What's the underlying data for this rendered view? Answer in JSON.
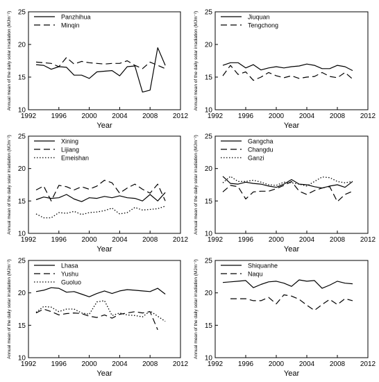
{
  "chart_data": [
    {
      "type": "line",
      "xlabel": "Year",
      "ylabel": "Annual mean of the daily solar irradiation (MJm⁻²)",
      "xlim": [
        1992,
        2012
      ],
      "ylim": [
        10,
        25
      ],
      "xticks": [
        "1992",
        "1996",
        "2000",
        "2004",
        "2008",
        "2012"
      ],
      "yticks": [
        "10",
        "15",
        "20",
        "25"
      ],
      "legend_position": "top-left",
      "series": [
        {
          "name": "Panzhihua",
          "style": "solid",
          "x": [
            1993,
            1994,
            1995,
            1996,
            1997,
            1998,
            1999,
            2000,
            2001,
            2002,
            2003,
            2004,
            2005,
            2006,
            2007,
            2008,
            2009,
            2010
          ],
          "y": [
            16.9,
            16.8,
            16.2,
            16.6,
            16.5,
            15.3,
            15.3,
            14.8,
            15.8,
            15.9,
            16.0,
            15.2,
            16.6,
            16.7,
            12.7,
            13.0,
            19.5,
            16.8
          ]
        },
        {
          "name": "Minqin",
          "style": "dash",
          "x": [
            1993,
            1994,
            1995,
            1996,
            1997,
            1998,
            1999,
            2000,
            2001,
            2002,
            2003,
            2004,
            2005,
            2006,
            2007,
            2008,
            2009,
            2010
          ],
          "y": [
            17.3,
            17.2,
            17.1,
            16.6,
            18.0,
            17.0,
            17.4,
            17.2,
            17.1,
            17.0,
            17.1,
            17.1,
            17.5,
            16.8,
            16.3,
            17.3,
            16.8,
            16.3
          ]
        }
      ]
    },
    {
      "type": "line",
      "xlabel": "Year",
      "ylabel": "Annual mean of the daily solar irradiation (MJm⁻²)",
      "xlim": [
        1992,
        2012
      ],
      "ylim": [
        10,
        25
      ],
      "xticks": [
        "1992",
        "1996",
        "2000",
        "2004",
        "2008",
        "2012"
      ],
      "yticks": [
        "10",
        "15",
        "20",
        "25"
      ],
      "legend_position": "top-left",
      "series": [
        {
          "name": "Jiuquan",
          "style": "solid",
          "x": [
            1993,
            1994,
            1995,
            1996,
            1997,
            1998,
            1999,
            2000,
            2001,
            2002,
            2003,
            2004,
            2005,
            2006,
            2007,
            2008,
            2009,
            2010
          ],
          "y": [
            16.8,
            17.2,
            17.2,
            16.4,
            16.9,
            16.1,
            16.4,
            16.6,
            16.4,
            16.6,
            16.7,
            17.0,
            16.8,
            16.3,
            16.3,
            16.8,
            16.6,
            16.0
          ]
        },
        {
          "name": "Tengchong",
          "style": "dash",
          "x": [
            1993,
            1994,
            1995,
            1996,
            1997,
            1998,
            1999,
            2000,
            2001,
            2002,
            2003,
            2004,
            2005,
            2006,
            2007,
            2008,
            2009,
            2010
          ],
          "y": [
            15.2,
            16.8,
            15.4,
            15.8,
            14.5,
            15.0,
            15.7,
            15.2,
            14.9,
            15.2,
            14.8,
            15.0,
            15.1,
            15.7,
            15.1,
            14.9,
            15.7,
            14.7
          ]
        }
      ]
    },
    {
      "type": "line",
      "xlabel": "Year",
      "ylabel": "Annual mean of the daily solar irradiation (MJm⁻²)",
      "xlim": [
        1992,
        2012
      ],
      "ylim": [
        10,
        25
      ],
      "xticks": [
        "1992",
        "1996",
        "2000",
        "2004",
        "2008",
        "2012"
      ],
      "yticks": [
        "10",
        "15",
        "20",
        "25"
      ],
      "legend_position": "top-left",
      "series": [
        {
          "name": "Xining",
          "style": "solid",
          "x": [
            1993,
            1994,
            1995,
            1996,
            1997,
            1998,
            1999,
            2000,
            2001,
            2002,
            2003,
            2004,
            2005,
            2006,
            2007,
            2008,
            2009,
            2010
          ],
          "y": [
            15.2,
            15.6,
            15.4,
            15.5,
            16.0,
            15.3,
            14.9,
            15.5,
            15.4,
            15.7,
            15.5,
            15.8,
            15.5,
            15.4,
            15.0,
            16.0,
            15.0,
            16.3
          ]
        },
        {
          "name": "Lijiang",
          "style": "dash",
          "x": [
            1993,
            1994,
            1995,
            1996,
            1997,
            1998,
            1999,
            2000,
            2001,
            2002,
            2003,
            2004,
            2005,
            2006,
            2007,
            2008,
            2009,
            2010
          ],
          "y": [
            16.7,
            17.3,
            15.0,
            17.4,
            17.2,
            16.7,
            17.2,
            16.8,
            17.3,
            18.2,
            17.8,
            16.2,
            17.0,
            17.6,
            16.8,
            16.2,
            17.6,
            15.0
          ]
        },
        {
          "name": "Emeishan",
          "style": "dot",
          "x": [
            1993,
            1994,
            1995,
            1996,
            1997,
            1998,
            1999,
            2000,
            2001,
            2002,
            2003,
            2004,
            2005,
            2006,
            2007,
            2008,
            2009,
            2010
          ],
          "y": [
            13.0,
            12.4,
            12.4,
            13.2,
            13.1,
            13.4,
            12.9,
            13.2,
            13.3,
            13.5,
            13.9,
            13.0,
            13.2,
            14.0,
            13.6,
            13.7,
            13.8,
            14.2
          ]
        }
      ]
    },
    {
      "type": "line",
      "xlabel": "Year",
      "ylabel": "Annual mean of the daily solar irradiation (MJm⁻²)",
      "xlim": [
        1992,
        2012
      ],
      "ylim": [
        10,
        25
      ],
      "xticks": [
        "1992",
        "1996",
        "2000",
        "2004",
        "2008",
        "2012"
      ],
      "yticks": [
        "10",
        "15",
        "20",
        "25"
      ],
      "legend_position": "top-left",
      "series": [
        {
          "name": "Gangcha",
          "style": "solid",
          "x": [
            1993,
            1994,
            1995,
            1996,
            1997,
            1998,
            1999,
            2000,
            2001,
            2002,
            2003,
            2004,
            2005,
            2006,
            2007,
            2008,
            2009,
            2010
          ],
          "y": [
            18.8,
            17.7,
            17.6,
            17.9,
            17.7,
            17.6,
            17.3,
            17.1,
            17.6,
            18.3,
            17.6,
            17.5,
            17.2,
            17.0,
            17.3,
            17.5,
            17.1,
            18.0
          ]
        },
        {
          "name": "Changdu",
          "style": "dash",
          "x": [
            1993,
            1994,
            1995,
            1996,
            1997,
            1998,
            1999,
            2000,
            2001,
            2002,
            2003,
            2004,
            2005,
            2006,
            2007,
            2008,
            2009,
            2010
          ],
          "y": [
            16.4,
            17.4,
            17.2,
            15.3,
            16.4,
            16.5,
            16.5,
            16.9,
            17.4,
            18.0,
            16.5,
            16.0,
            16.6,
            17.0,
            17.2,
            14.9,
            16.0,
            16.5
          ]
        },
        {
          "name": "Ganzi",
          "style": "dot",
          "x": [
            1993,
            1994,
            1995,
            1996,
            1997,
            1998,
            1999,
            2000,
            2001,
            2002,
            2003,
            2004,
            2005,
            2006,
            2007,
            2008,
            2009,
            2010
          ],
          "y": [
            17.8,
            18.8,
            18.0,
            18.0,
            18.2,
            17.9,
            17.5,
            17.4,
            17.9,
            17.8,
            17.6,
            17.3,
            18.0,
            18.7,
            18.6,
            18.0,
            17.8,
            18.0
          ]
        }
      ]
    },
    {
      "type": "line",
      "xlabel": "Year",
      "ylabel": "Annual mean of the daily solar irradiation (MJm⁻²)",
      "xlim": [
        1992,
        2012
      ],
      "ylim": [
        10,
        25
      ],
      "xticks": [
        "1992",
        "1996",
        "2000",
        "2004",
        "2008",
        "2012"
      ],
      "yticks": [
        "10",
        "15",
        "20",
        "25"
      ],
      "legend_position": "top-left",
      "series": [
        {
          "name": "Lhasa",
          "style": "solid",
          "x": [
            1993,
            1994,
            1995,
            1996,
            1997,
            1998,
            1999,
            2000,
            2001,
            2002,
            2003,
            2004,
            2005,
            2006,
            2007,
            2008,
            2009,
            2010
          ],
          "y": [
            20.2,
            20.4,
            20.8,
            20.7,
            20.1,
            20.2,
            19.8,
            19.4,
            19.9,
            20.3,
            19.9,
            20.3,
            20.5,
            20.4,
            20.3,
            20.2,
            20.7,
            19.8
          ]
        },
        {
          "name": "Yushu",
          "style": "dash",
          "x": [
            1993,
            1994,
            1995,
            1996,
            1997,
            1998,
            1999,
            2000,
            2001,
            2002,
            2003,
            2004,
            2005,
            2006,
            2007,
            2008,
            2009
          ],
          "y": [
            16.9,
            17.5,
            17.1,
            16.6,
            16.8,
            16.9,
            16.8,
            16.4,
            16.2,
            16.6,
            16.1,
            16.7,
            16.9,
            17.1,
            16.9,
            17.1,
            14.3
          ]
        },
        {
          "name": "Guoluo",
          "style": "dot",
          "x": [
            1993,
            1994,
            1995,
            1996,
            1997,
            1998,
            1999,
            2000,
            2001,
            2002,
            2003,
            2004,
            2005,
            2006,
            2007,
            2008,
            2009,
            2010
          ],
          "y": [
            17.0,
            17.9,
            17.8,
            17.1,
            17.5,
            17.5,
            16.9,
            16.7,
            18.6,
            18.8,
            16.5,
            16.9,
            16.6,
            16.5,
            16.3,
            17.2,
            16.4,
            15.6
          ]
        }
      ]
    },
    {
      "type": "line",
      "xlabel": "Year",
      "ylabel": "Annual mean of the daily solar irradiation (MJm⁻²)",
      "xlim": [
        1992,
        2012
      ],
      "ylim": [
        10,
        25
      ],
      "xticks": [
        "1992",
        "1996",
        "2000",
        "2004",
        "2008",
        "2012"
      ],
      "yticks": [
        "10",
        "15",
        "20",
        "25"
      ],
      "legend_position": "top-left",
      "series": [
        {
          "name": "Shiquanhe",
          "style": "solid",
          "x": [
            1993,
            1994,
            1995,
            1996,
            1997,
            1998,
            1999,
            2000,
            2001,
            2002,
            2003,
            2004,
            2005,
            2006,
            2007,
            2008,
            2009,
            2010
          ],
          "y": [
            21.6,
            21.7,
            21.8,
            21.9,
            20.8,
            21.3,
            21.7,
            21.8,
            21.5,
            21.0,
            22.0,
            21.8,
            21.9,
            20.7,
            21.2,
            21.8,
            21.5,
            21.4
          ]
        },
        {
          "name": "Naqu",
          "style": "dash",
          "x": [
            1994,
            1995,
            1996,
            1997,
            1998,
            1999,
            2000,
            2001,
            2002,
            2003,
            2004,
            2005,
            2006,
            2007,
            2008,
            2009,
            2010
          ],
          "y": [
            19.1,
            19.1,
            19.1,
            18.8,
            18.8,
            19.3,
            18.3,
            19.7,
            19.5,
            19.0,
            18.1,
            17.3,
            18.2,
            19.0,
            18.2,
            19.1,
            18.8
          ]
        }
      ]
    }
  ]
}
